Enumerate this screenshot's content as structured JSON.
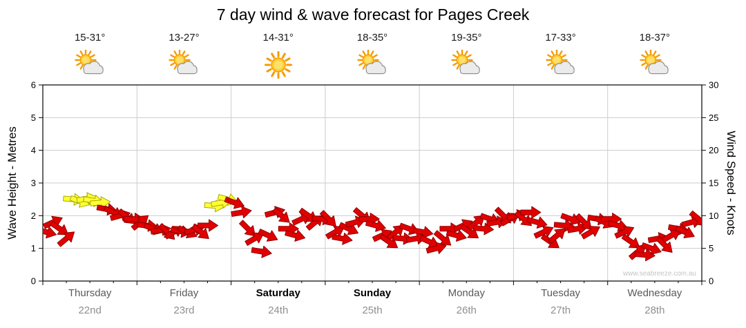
{
  "title": "7 day wind & wave forecast for Pages Creek",
  "watermark": "www.seabreeze.com.au",
  "colors": {
    "arrow_red": "#e10000",
    "arrow_red_outline": "#8f0000",
    "arrow_yellow": "#ffff33",
    "arrow_yellow_outline": "#a8a800",
    "grid": "#cccccc",
    "axis": "#000000",
    "sun": "#FFCC33",
    "sun_ray": "#F59B00",
    "cloud_fill": "#ebebeb",
    "cloud_outline": "#8f8f8f"
  },
  "days": [
    {
      "name": "Thursday",
      "date": "22nd",
      "temp": "15-31°",
      "icon": "sun-cloud",
      "emphasis": false
    },
    {
      "name": "Friday",
      "date": "23rd",
      "temp": "13-27°",
      "icon": "sun-cloud",
      "emphasis": false
    },
    {
      "name": "Saturday",
      "date": "24th",
      "temp": "14-31°",
      "icon": "sun",
      "emphasis": true
    },
    {
      "name": "Sunday",
      "date": "25th",
      "temp": "18-35°",
      "icon": "sun-cloud",
      "emphasis": true
    },
    {
      "name": "Monday",
      "date": "26th",
      "temp": "19-35°",
      "icon": "sun-cloud",
      "emphasis": false
    },
    {
      "name": "Tuesday",
      "date": "27th",
      "temp": "17-33°",
      "icon": "sun-cloud",
      "emphasis": false
    },
    {
      "name": "Wednesday",
      "date": "28th",
      "temp": "18-37°",
      "icon": "sun-cloud",
      "emphasis": false
    }
  ],
  "left_axis": {
    "label": "Wave Height - Metres",
    "min": 0,
    "max": 6,
    "ticks": [
      0,
      1,
      2,
      3,
      4,
      5,
      6
    ]
  },
  "right_axis": {
    "label": "Wind Speed - Knots",
    "min": 0,
    "max": 30,
    "ticks": [
      0,
      5,
      10,
      15,
      20,
      25,
      30
    ]
  },
  "chart_data": {
    "type": "scatter",
    "title": "7 day wind & wave forecast for Pages Creek",
    "description": "Wind speed/direction arrows, 14 samples per day across 7 days; arrow vertical position read against right axis in knots (equivalently wave-height metres on left axis = knots/5); yellow arrows mark the stronger ~12+ knot periods, red arrows otherwise; angle_deg is arrow rotation (0 = pointing right, positive = clockwise/down)",
    "days": [
      "Thursday 22nd",
      "Friday 23rd",
      "Saturday 24th",
      "Sunday 25th",
      "Monday 26th",
      "Tuesday 27th",
      "Wednesday 28th"
    ],
    "points_per_day": 14,
    "ylim_knots": [
      0,
      30
    ],
    "ylim_metres": [
      0,
      6
    ],
    "legend_position": "none",
    "grid": true,
    "knots": [
      7.5,
      9,
      8,
      6.5,
      12.5,
      12.2,
      12.6,
      12.3,
      12,
      11,
      10.5,
      10,
      9.8,
      9.5,
      9,
      8.5,
      8,
      7.8,
      7.5,
      7.5,
      7.6,
      7.5,
      7.8,
      7.5,
      8.5,
      11.5,
      12,
      12.5,
      12,
      10.5,
      8,
      6.5,
      4.5,
      7,
      10.5,
      10,
      8,
      7,
      9.5,
      10,
      9,
      9.5,
      9.5,
      7.5,
      6.5,
      8,
      9,
      10,
      9.5,
      8.5,
      7,
      6,
      7.5,
      6.5,
      8,
      6.5,
      7.5,
      6,
      5,
      6.5,
      8,
      7,
      8.5,
      7.5,
      9,
      8,
      9.5,
      9,
      10,
      9.5,
      10,
      9.5,
      10.5,
      9,
      7.5,
      6,
      7,
      8.5,
      9.5,
      8,
      9,
      7.5,
      9.5,
      9,
      9.5,
      8.5,
      7.5,
      6,
      4.5,
      4,
      5,
      6.5,
      5.5,
      7,
      8,
      7.5,
      9,
      9.5
    ],
    "angle_deg": [
      15,
      -25,
      35,
      -40,
      5,
      20,
      -10,
      10,
      -5,
      10,
      25,
      -15,
      40,
      0,
      -40,
      5,
      20,
      -10,
      45,
      -30,
      10,
      25,
      -15,
      40,
      0,
      5,
      -10,
      15,
      20,
      -10,
      45,
      -30,
      10,
      25,
      -15,
      40,
      0,
      15,
      -25,
      35,
      -40,
      5,
      45,
      -30,
      10,
      25,
      -15,
      40,
      0,
      15,
      -25,
      35,
      -40,
      5,
      20,
      -10,
      10,
      25,
      -15,
      40,
      0,
      15,
      -25,
      35,
      -40,
      5,
      20,
      -10,
      45,
      -30,
      -15,
      40,
      0,
      15,
      -25,
      35,
      -40,
      5,
      20,
      -10,
      45,
      -30,
      10,
      25,
      0,
      15,
      -25,
      35,
      -40,
      5,
      20,
      -10,
      45,
      -30,
      10,
      25,
      -15,
      40
    ],
    "color_key": {
      "R": "red",
      "Y": "yellow"
    },
    "colors_seq": "RRRRYYYYYRRRRRRRRRRRRRRRRYYYRRRRRRRRRRRRRRRRRRRRRRRRRRRRRRRRRRRRRRRRRRRRRRRRRRRRRRRRRRRRRRRRRRRRR"
  }
}
